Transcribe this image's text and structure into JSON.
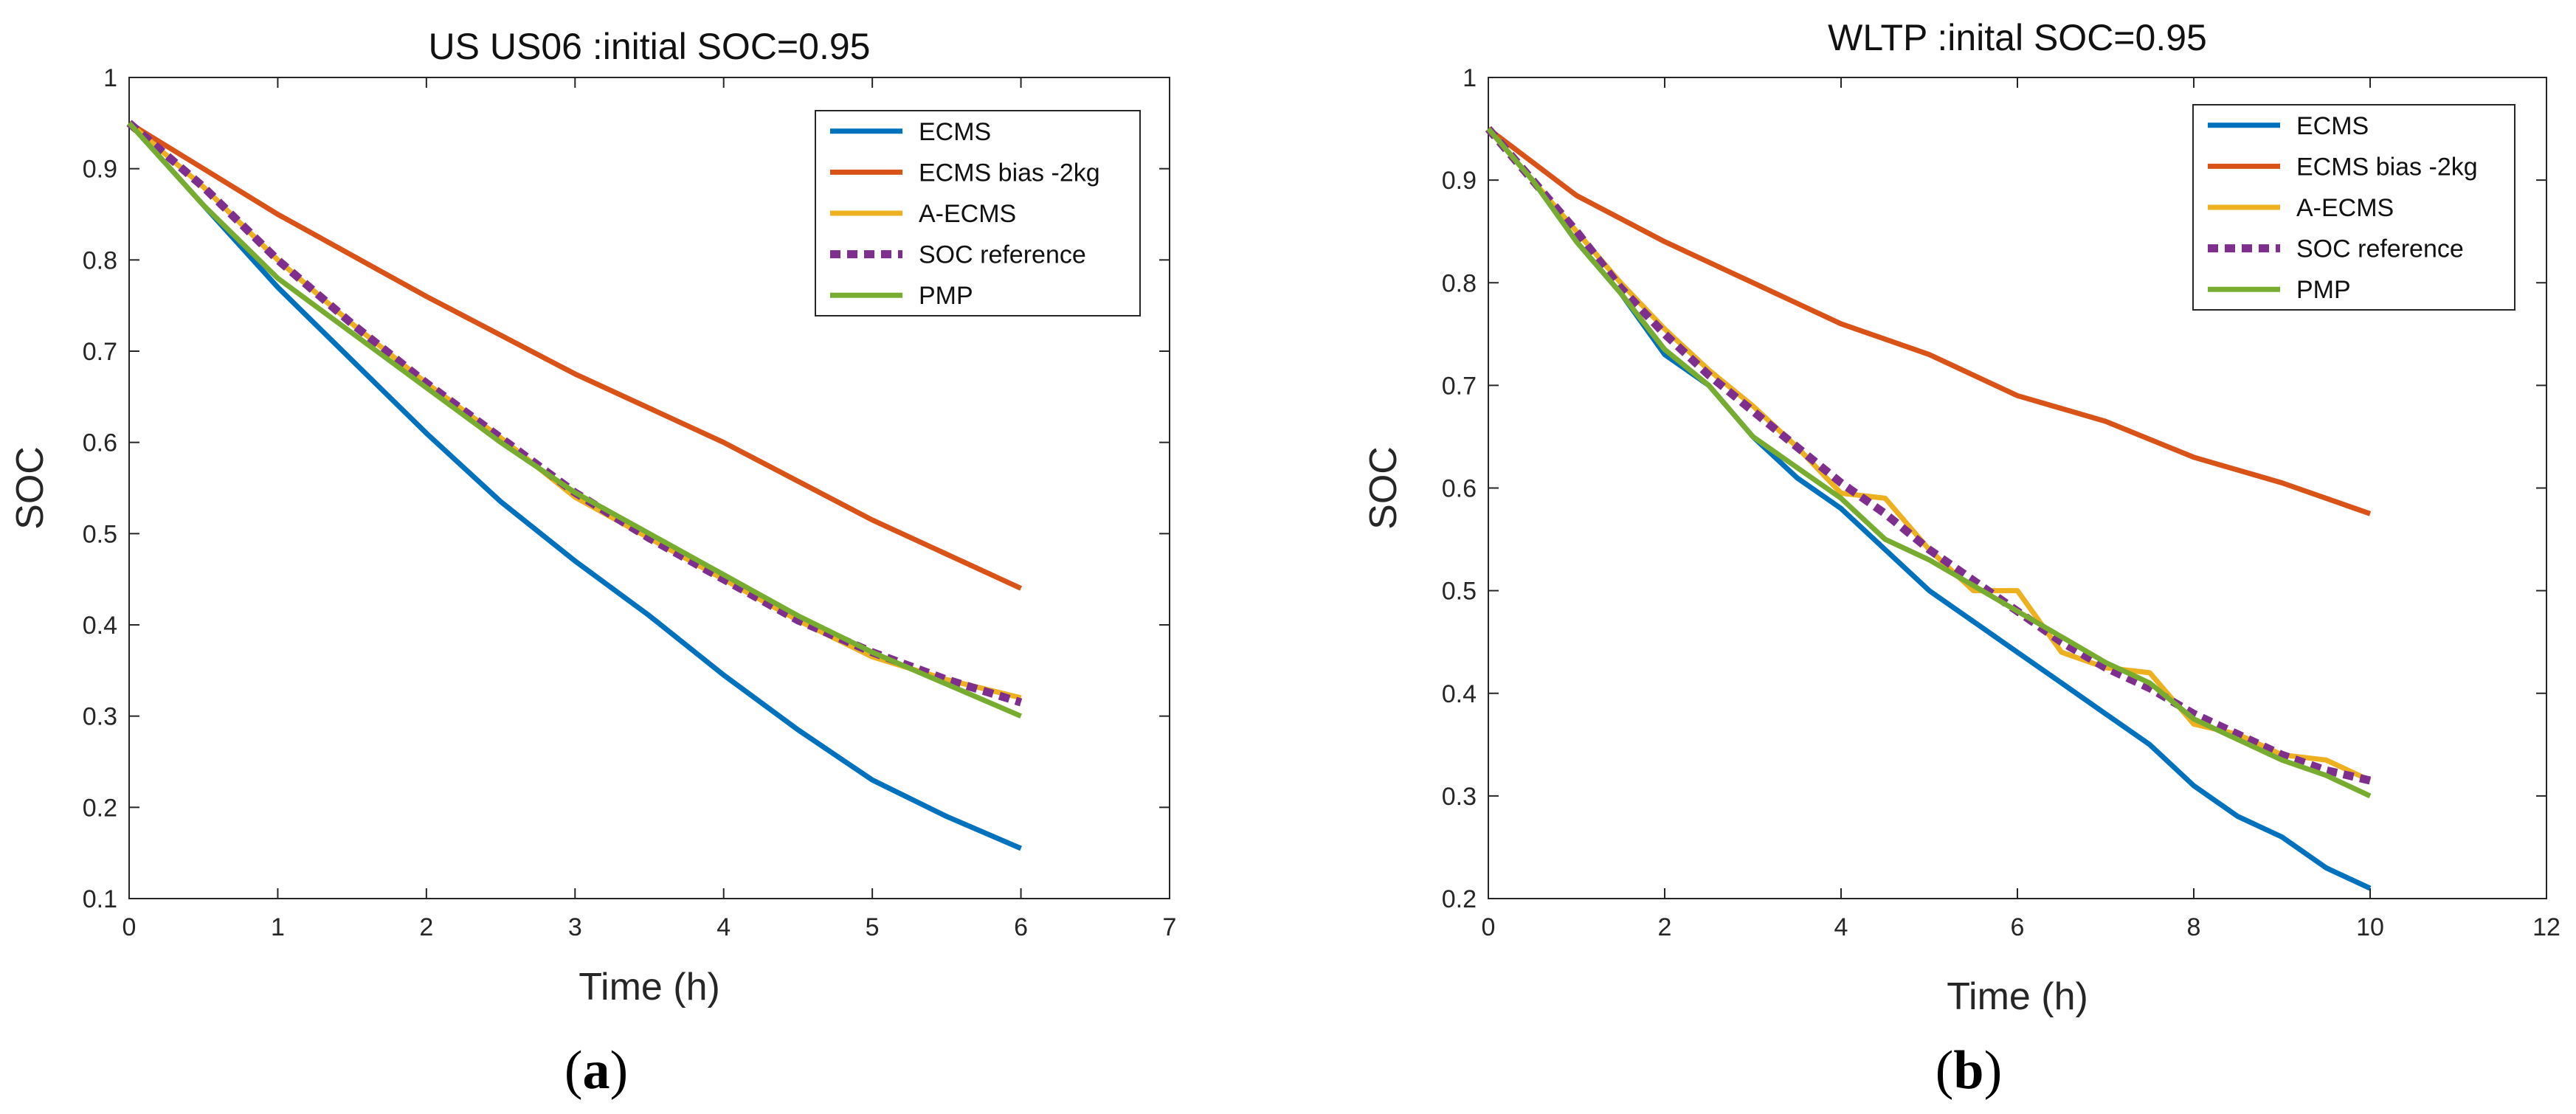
{
  "chart_data": [
    {
      "type": "line",
      "panel_label": "a",
      "title": "US US06 :initial SOC=0.95",
      "xlabel": "Time (h)",
      "ylabel": "SOC",
      "xlim": [
        0,
        7
      ],
      "ylim": [
        0.1,
        1
      ],
      "xticks": [
        0,
        1,
        2,
        3,
        4,
        5,
        6,
        7
      ],
      "yticks": [
        0.1,
        0.2,
        0.3,
        0.4,
        0.5,
        0.6,
        0.7,
        0.8,
        0.9,
        1
      ],
      "legend_position": "top-right",
      "grid": false,
      "series": [
        {
          "name": "ECMS",
          "color": "#0072BD",
          "dashed": false,
          "x": [
            0,
            0.5,
            1,
            1.5,
            2,
            2.5,
            3,
            3.5,
            4,
            4.5,
            5,
            5.5,
            6
          ],
          "y": [
            0.95,
            0.86,
            0.77,
            0.69,
            0.61,
            0.535,
            0.47,
            0.41,
            0.345,
            0.285,
            0.23,
            0.19,
            0.155
          ]
        },
        {
          "name": "ECMS bias -2kg",
          "color": "#D95319",
          "dashed": false,
          "x": [
            0,
            1,
            2,
            3,
            4,
            5,
            6
          ],
          "y": [
            0.95,
            0.85,
            0.76,
            0.675,
            0.6,
            0.515,
            0.44
          ]
        },
        {
          "name": "A-ECMS",
          "color": "#EDB120",
          "dashed": false,
          "x": [
            0,
            0.5,
            1,
            1.5,
            2,
            2.5,
            3,
            3.5,
            4,
            4.5,
            5,
            5.5,
            6
          ],
          "y": [
            0.95,
            0.88,
            0.8,
            0.73,
            0.665,
            0.605,
            0.54,
            0.495,
            0.45,
            0.405,
            0.365,
            0.34,
            0.32
          ]
        },
        {
          "name": "SOC reference",
          "color": "#7E2F8E",
          "dashed": true,
          "x": [
            0,
            0.5,
            1,
            1.5,
            2,
            2.5,
            3,
            3.5,
            4,
            4.5,
            5,
            5.5,
            6
          ],
          "y": [
            0.95,
            0.88,
            0.8,
            0.73,
            0.665,
            0.605,
            0.545,
            0.495,
            0.45,
            0.405,
            0.37,
            0.34,
            0.315
          ]
        },
        {
          "name": "PMP",
          "color": "#77AC30",
          "dashed": false,
          "x": [
            0,
            0.5,
            1,
            1.5,
            2,
            2.5,
            3,
            3.5,
            4,
            4.5,
            5,
            5.5,
            6
          ],
          "y": [
            0.95,
            0.86,
            0.78,
            0.72,
            0.66,
            0.6,
            0.545,
            0.5,
            0.455,
            0.41,
            0.37,
            0.335,
            0.3
          ]
        }
      ]
    },
    {
      "type": "line",
      "panel_label": "b",
      "title": "WLTP :inital SOC=0.95",
      "xlabel": "Time (h)",
      "ylabel": "SOC",
      "xlim": [
        0,
        12
      ],
      "ylim": [
        0.2,
        1
      ],
      "xticks": [
        0,
        2,
        4,
        6,
        8,
        10,
        12
      ],
      "yticks": [
        0.2,
        0.3,
        0.4,
        0.5,
        0.6,
        0.7,
        0.8,
        0.9,
        1
      ],
      "legend_position": "top-right",
      "grid": false,
      "series": [
        {
          "name": "ECMS",
          "color": "#0072BD",
          "dashed": false,
          "x": [
            0,
            0.5,
            1,
            1.5,
            2,
            2.5,
            3,
            3.5,
            4,
            4.5,
            5,
            5.5,
            6,
            6.5,
            7,
            7.5,
            8,
            8.5,
            9,
            9.5,
            10
          ],
          "y": [
            0.95,
            0.9,
            0.84,
            0.79,
            0.73,
            0.7,
            0.65,
            0.61,
            0.58,
            0.54,
            0.5,
            0.47,
            0.44,
            0.41,
            0.38,
            0.35,
            0.31,
            0.28,
            0.26,
            0.23,
            0.21
          ]
        },
        {
          "name": "ECMS bias -2kg",
          "color": "#D95319",
          "dashed": false,
          "x": [
            0,
            1,
            2,
            3,
            4,
            5,
            6,
            7,
            8,
            9,
            10
          ],
          "y": [
            0.95,
            0.885,
            0.84,
            0.8,
            0.76,
            0.73,
            0.69,
            0.665,
            0.63,
            0.605,
            0.575
          ]
        },
        {
          "name": "A-ECMS",
          "color": "#EDB120",
          "dashed": false,
          "x": [
            0,
            0.5,
            1,
            1.5,
            2,
            2.5,
            3,
            3.5,
            4,
            4.5,
            5,
            5.5,
            6,
            6.5,
            7,
            7.5,
            8,
            8.5,
            9,
            9.5,
            10
          ],
          "y": [
            0.95,
            0.9,
            0.85,
            0.8,
            0.755,
            0.715,
            0.68,
            0.64,
            0.595,
            0.59,
            0.54,
            0.5,
            0.5,
            0.44,
            0.425,
            0.42,
            0.37,
            0.36,
            0.34,
            0.335,
            0.315
          ]
        },
        {
          "name": "SOC reference",
          "color": "#7E2F8E",
          "dashed": true,
          "x": [
            0,
            0.5,
            1,
            1.5,
            2,
            2.5,
            3,
            3.5,
            4,
            4.5,
            5,
            5.5,
            6,
            6.5,
            7,
            7.5,
            8,
            8.5,
            9,
            9.5,
            10
          ],
          "y": [
            0.95,
            0.9,
            0.85,
            0.795,
            0.75,
            0.71,
            0.675,
            0.64,
            0.605,
            0.575,
            0.54,
            0.51,
            0.48,
            0.45,
            0.425,
            0.405,
            0.38,
            0.36,
            0.34,
            0.325,
            0.315
          ]
        },
        {
          "name": "PMP",
          "color": "#77AC30",
          "dashed": false,
          "x": [
            0,
            0.5,
            1,
            1.5,
            2,
            2.5,
            3,
            3.5,
            4,
            4.5,
            5,
            5.5,
            6,
            6.5,
            7,
            7.5,
            8,
            8.5,
            9,
            9.5,
            10
          ],
          "y": [
            0.95,
            0.9,
            0.84,
            0.79,
            0.735,
            0.7,
            0.65,
            0.62,
            0.59,
            0.55,
            0.53,
            0.505,
            0.48,
            0.455,
            0.43,
            0.41,
            0.375,
            0.355,
            0.335,
            0.32,
            0.3
          ]
        }
      ]
    }
  ]
}
